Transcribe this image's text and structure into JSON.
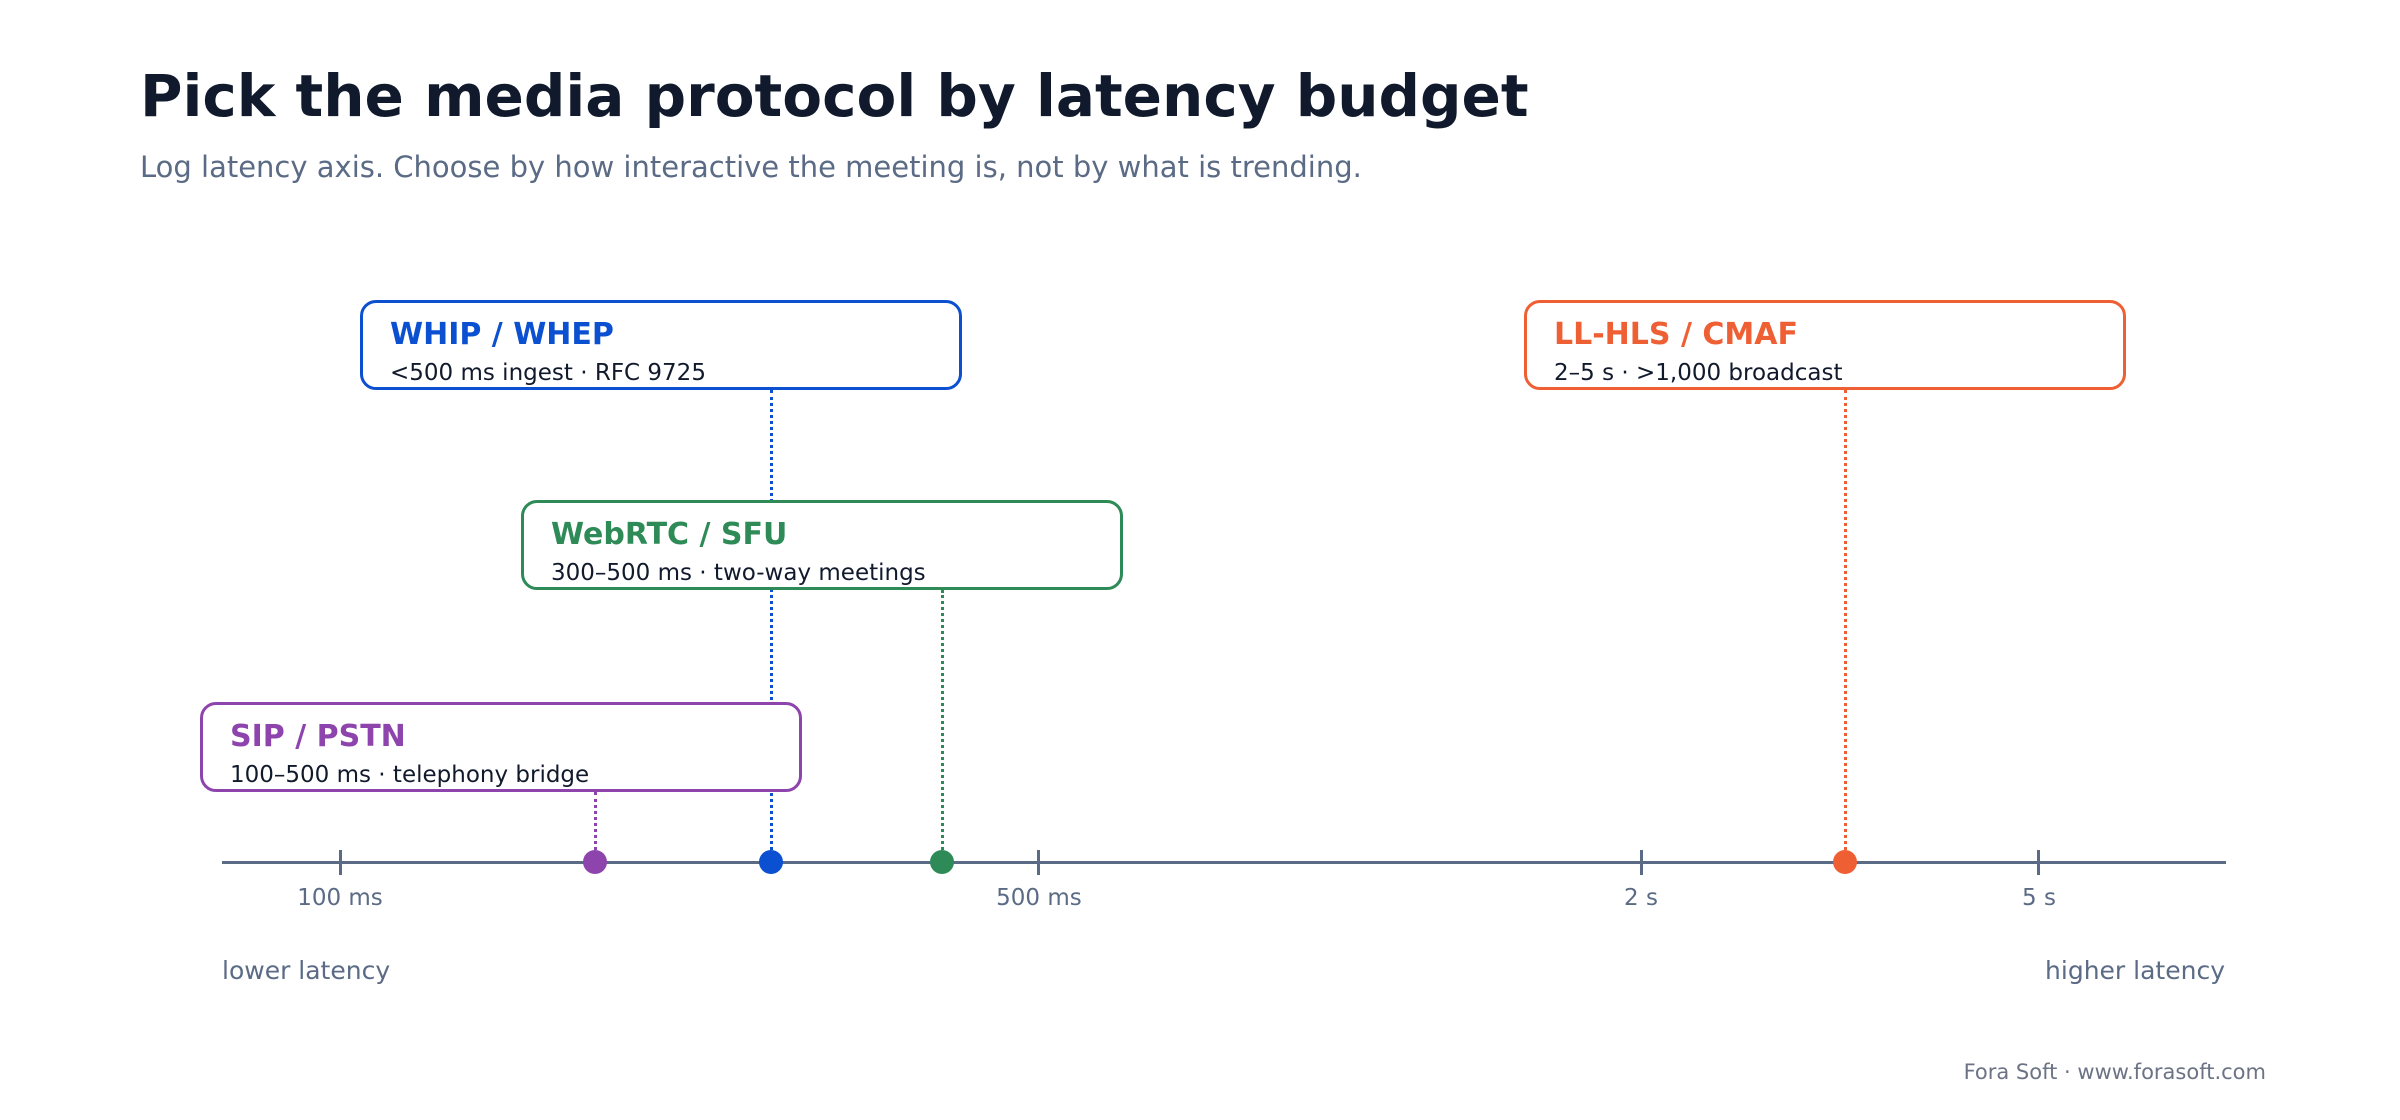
{
  "header": {
    "title": "Pick the media protocol by latency budget",
    "subtitle": "Log latency axis. Choose by how interactive the meeting is, not by what is trending."
  },
  "axis": {
    "scale": "log",
    "unit": "ms",
    "range_ms": [
      70,
      7000
    ],
    "ticks": [
      {
        "value_ms": 100,
        "label": "100 ms"
      },
      {
        "value_ms": 500,
        "label": "500 ms"
      },
      {
        "value_ms": 2000,
        "label": "2 s"
      },
      {
        "value_ms": 5000,
        "label": "5 s"
      }
    ],
    "low_end_label": "lower latency",
    "high_end_label": "higher latency",
    "color": "#5b6b85"
  },
  "protocols": [
    {
      "key": "sip",
      "name": "SIP / PSTN",
      "detail": "100–500 ms · telephony bridge",
      "marker_ms": 180,
      "color": "#8e44ad"
    },
    {
      "key": "whip",
      "name": "WHIP / WHEP",
      "detail": "<500 ms ingest · RFC 9725",
      "marker_ms": 270,
      "color": "#0b50d0"
    },
    {
      "key": "webrtc",
      "name": "WebRTC / SFU",
      "detail": "300–500 ms · two-way meetings",
      "marker_ms": 400,
      "color": "#2e8b57"
    },
    {
      "key": "llhls",
      "name": "LL-HLS / CMAF",
      "detail": "2–5 s · >1,000 broadcast",
      "marker_ms": 3200,
      "color": "#ef5f34"
    }
  ],
  "footer": "Fora Soft · www.forasoft.com"
}
